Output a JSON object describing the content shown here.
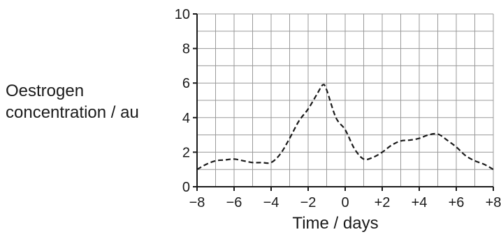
{
  "chart_data": {
    "type": "line",
    "title": "",
    "xlabel": "Time / days",
    "ylabel_lines": [
      "Oestrogen",
      "concentration / au"
    ],
    "xlim": [
      -8,
      8
    ],
    "ylim": [
      0,
      10
    ],
    "grid": true,
    "x_ticks": [
      -8,
      -6,
      -4,
      -2,
      0,
      2,
      4,
      6,
      8
    ],
    "x_tick_labels": [
      "−8",
      "−6",
      "−4",
      "−2",
      "0",
      "+2",
      "+4",
      "+6",
      "+8"
    ],
    "y_ticks": [
      0,
      2,
      4,
      6,
      8,
      10
    ],
    "y_tick_labels": [
      "0",
      "2",
      "4",
      "6",
      "8",
      "10"
    ],
    "line_style": "dashed",
    "line_color": "#1a1a1a",
    "series": [
      {
        "x": [
          -8,
          -7.5,
          -7,
          -6.5,
          -6,
          -5.5,
          -5,
          -4.5,
          -4,
          -3.5,
          -3,
          -2.5,
          -2,
          -1.5,
          -1.2,
          -1,
          -0.5,
          0,
          0.5,
          1,
          1.5,
          2,
          2.5,
          3,
          3.5,
          4,
          4.5,
          5,
          5.5,
          6,
          6.5,
          7,
          7.5,
          8
        ],
        "y": [
          1.0,
          1.3,
          1.5,
          1.55,
          1.6,
          1.5,
          1.4,
          1.4,
          1.4,
          1.9,
          2.8,
          3.8,
          4.5,
          5.4,
          5.9,
          5.6,
          4.0,
          3.3,
          2.2,
          1.6,
          1.7,
          2.0,
          2.4,
          2.65,
          2.7,
          2.8,
          3.0,
          3.05,
          2.7,
          2.3,
          1.8,
          1.5,
          1.3,
          1.0
        ]
      }
    ]
  }
}
